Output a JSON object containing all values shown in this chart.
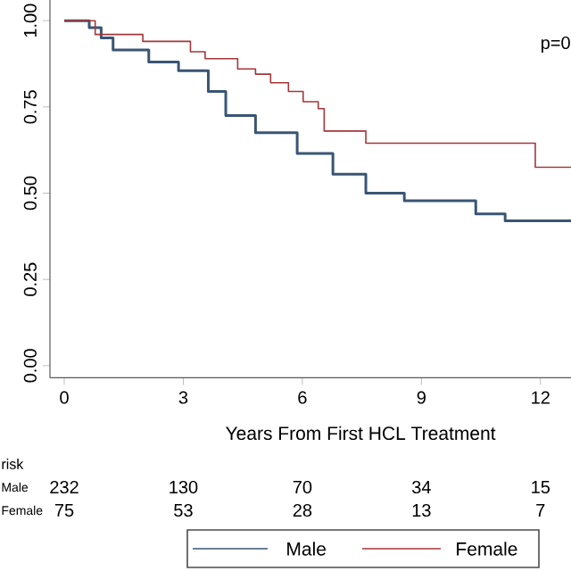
{
  "chart_data": {
    "type": "step",
    "xlabel": "Years From First HCL Treatment",
    "xlim": [
      -0.36,
      12.77
    ],
    "ylim": [
      -0.035,
      1.06
    ],
    "xticks": [
      0,
      3,
      6,
      9,
      12
    ],
    "yticks": [
      {
        "value": 0,
        "label": "0.00"
      },
      {
        "value": 0.25,
        "label": "0.25"
      },
      {
        "value": 0.5,
        "label": "0.50"
      },
      {
        "value": 0.75,
        "label": "0.75"
      },
      {
        "value": 1,
        "label": "1.00"
      }
    ],
    "legend": "bottom",
    "grid": false,
    "marker": "none",
    "series": [
      {
        "name": "Male",
        "color": "#3a5573",
        "x": [
          0,
          0.63,
          0.93,
          1.23,
          2.13,
          2.88,
          3.63,
          4.07,
          4.82,
          5.87,
          6.77,
          7.6,
          8.57,
          10.37,
          11.11,
          12.77
        ],
        "values": [
          1.0,
          0.98,
          0.95,
          0.915,
          0.88,
          0.855,
          0.795,
          0.725,
          0.675,
          0.615,
          0.555,
          0.5,
          0.478,
          0.44,
          0.42,
          0.42
        ]
      },
      {
        "name": "Female",
        "color": "#a3363a",
        "x": [
          0,
          0.78,
          1.98,
          3.18,
          3.55,
          4.37,
          4.82,
          5.2,
          5.65,
          6.02,
          6.4,
          6.55,
          7.6,
          11.87,
          12.77
        ],
        "values": [
          1.0,
          0.96,
          0.94,
          0.91,
          0.89,
          0.86,
          0.845,
          0.82,
          0.795,
          0.765,
          0.745,
          0.68,
          0.645,
          0.575,
          0.575
        ]
      }
    ],
    "annotations": [
      "p=0",
      "risk",
      "232",
      "130",
      "70",
      "34",
      "15",
      "75",
      "53",
      "28",
      "13",
      "7"
    ]
  }
}
